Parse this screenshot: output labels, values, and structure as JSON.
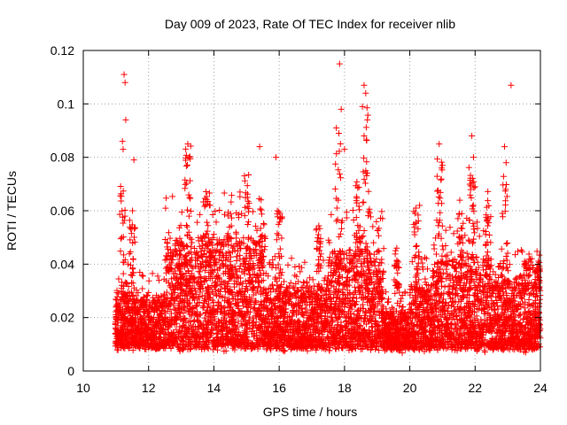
{
  "chart_data": {
    "type": "scatter",
    "title": "Day 009 of 2023, Rate Of TEC Index for receiver nlib",
    "xlabel": "GPS time / hours",
    "ylabel": "ROTI / TECUs",
    "xlim": [
      10,
      24
    ],
    "ylim": [
      0,
      0.12
    ],
    "x_ticks": [
      "10",
      "12",
      "14",
      "16",
      "18",
      "20",
      "22",
      "24"
    ],
    "y_ticks": [
      "0",
      "0.02",
      "0.04",
      "0.06",
      "0.08",
      "0.1",
      "0.12"
    ],
    "grid": true,
    "marker": "plus",
    "color": "#ff0000",
    "series": [
      {
        "name": "ROTI",
        "x": [
          11.0,
          11.0,
          11.05,
          11.1,
          11.2,
          11.25,
          11.25,
          11.3,
          11.3,
          11.35,
          11.4,
          11.45,
          11.5,
          11.6,
          11.7,
          11.9,
          12.1,
          12.3,
          12.5,
          12.7,
          12.9,
          13.1,
          13.2,
          13.3,
          13.3,
          13.5,
          13.7,
          13.9,
          14.1,
          14.3,
          14.5,
          14.6,
          14.8,
          14.9,
          15.0,
          15.1,
          15.2,
          15.4,
          15.5,
          15.7,
          15.9,
          16.0,
          16.2,
          16.5,
          16.8,
          17.0,
          17.2,
          17.4,
          17.6,
          17.8,
          17.85,
          17.9,
          17.9,
          18.0,
          18.2,
          18.5,
          18.6,
          18.7,
          18.7,
          18.8,
          19.0,
          19.2,
          19.5,
          19.6,
          20.0,
          20.2,
          20.5,
          20.8,
          20.9,
          21.0,
          21.2,
          21.5,
          21.7,
          21.9,
          22.0,
          22.2,
          22.5,
          22.7,
          22.8,
          22.9,
          23.0,
          23.1,
          23.3,
          23.6,
          23.8,
          24.0
        ]
      }
    ],
    "highlight_points": [
      {
        "x": 11.25,
        "y": 0.111
      },
      {
        "x": 11.28,
        "y": 0.108
      },
      {
        "x": 11.3,
        "y": 0.094
      },
      {
        "x": 11.2,
        "y": 0.086
      },
      {
        "x": 11.22,
        "y": 0.083
      },
      {
        "x": 11.55,
        "y": 0.079
      },
      {
        "x": 13.2,
        "y": 0.085
      },
      {
        "x": 13.25,
        "y": 0.08
      },
      {
        "x": 15.4,
        "y": 0.084
      },
      {
        "x": 15.9,
        "y": 0.08
      },
      {
        "x": 17.85,
        "y": 0.115
      },
      {
        "x": 17.9,
        "y": 0.098
      },
      {
        "x": 17.75,
        "y": 0.091
      },
      {
        "x": 18.0,
        "y": 0.083
      },
      {
        "x": 18.6,
        "y": 0.107
      },
      {
        "x": 18.65,
        "y": 0.104
      },
      {
        "x": 18.55,
        "y": 0.099
      },
      {
        "x": 18.7,
        "y": 0.094
      },
      {
        "x": 18.6,
        "y": 0.088
      },
      {
        "x": 20.9,
        "y": 0.085
      },
      {
        "x": 21.0,
        "y": 0.077
      },
      {
        "x": 21.9,
        "y": 0.088
      },
      {
        "x": 21.95,
        "y": 0.08
      },
      {
        "x": 22.9,
        "y": 0.084
      },
      {
        "x": 22.95,
        "y": 0.078
      },
      {
        "x": 23.1,
        "y": 0.107
      },
      {
        "x": 22.0,
        "y": 0.069
      },
      {
        "x": 20.3,
        "y": 0.062
      },
      {
        "x": 19.6,
        "y": 0.046
      },
      {
        "x": 14.8,
        "y": 0.067
      }
    ]
  }
}
